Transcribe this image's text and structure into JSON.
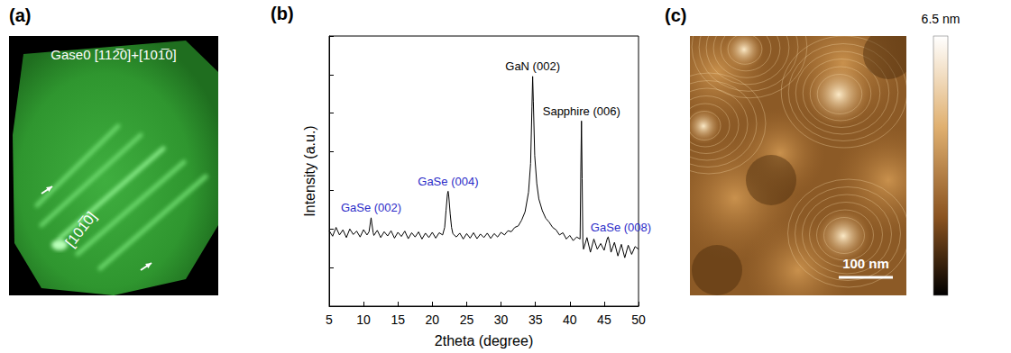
{
  "panel_a": {
    "label": "(a)",
    "title": "Gase0 [112̅0]+[101̅0]",
    "direction": "[101̅0]"
  },
  "chart_data": {
    "type": "line",
    "label": "(b)",
    "x_label": "2theta (degree)",
    "y_label": "Intensity (a.u.)",
    "x": [
      5,
      5.5,
      6,
      6.5,
      7,
      7.5,
      8,
      8.5,
      9,
      9.5,
      10,
      10.5,
      10.8,
      11,
      11.1,
      11.2,
      11.4,
      11.5,
      12,
      12.5,
      13,
      13.5,
      14,
      14.5,
      15,
      15.5,
      16,
      16.5,
      17,
      17.5,
      18,
      18.5,
      19,
      19.5,
      20,
      20.5,
      21,
      21.5,
      21.8,
      22,
      22.2,
      22.3,
      22.4,
      22.6,
      22.8,
      23,
      23.5,
      24,
      24.5,
      25,
      25.5,
      26,
      26.5,
      27,
      27.5,
      28,
      28.5,
      29,
      29.5,
      30,
      30.5,
      31,
      31.5,
      32,
      32.5,
      33,
      33.5,
      34,
      34.3,
      34.5,
      34.6,
      34.7,
      34.9,
      35.2,
      35.5,
      36,
      36.5,
      37,
      37.5,
      38,
      38.5,
      39,
      39.5,
      40,
      40.5,
      41,
      41.5,
      41.6,
      41.7,
      41.8,
      41.9,
      42,
      42.5,
      43,
      43.5,
      44,
      44.5,
      45,
      45.3,
      45.5,
      45.6,
      45.8,
      46,
      46.5,
      47,
      47.5,
      48,
      48.5,
      49,
      49.5,
      50
    ],
    "values": [
      90,
      65,
      110,
      70,
      95,
      60,
      100,
      72,
      88,
      62,
      96,
      70,
      85,
      150,
      195,
      140,
      80,
      68,
      92,
      60,
      85,
      66,
      90,
      58,
      82,
      64,
      88,
      56,
      80,
      62,
      84,
      55,
      78,
      60,
      82,
      58,
      80,
      70,
      110,
      300,
      800,
      950,
      700,
      250,
      110,
      75,
      62,
      78,
      55,
      76,
      58,
      80,
      56,
      74,
      60,
      78,
      57,
      76,
      62,
      82,
      70,
      90,
      85,
      110,
      120,
      170,
      280,
      900,
      5000,
      150000,
      900000,
      200000,
      8000,
      1500,
      600,
      300,
      190,
      150,
      110,
      95,
      70,
      80,
      55,
      68,
      50,
      62,
      55,
      3000,
      63000,
      2000,
      48,
      30,
      60,
      25,
      55,
      30,
      42,
      28,
      45,
      60,
      62,
      42,
      25,
      45,
      20,
      40,
      18,
      38,
      22,
      35,
      30
    ],
    "color": "#000000",
    "xlim": [
      5,
      50
    ],
    "xticks": [
      5,
      10,
      15,
      20,
      25,
      30,
      35,
      40,
      45,
      50
    ],
    "ylim": [
      1,
      10000000
    ],
    "log": "y",
    "tick_labels": "x",
    "grid": false,
    "annotations": [
      {
        "text": "GaSe (002)",
        "x": 11.1,
        "color": "#2b2bc8"
      },
      {
        "text": "GaSe (004)",
        "x": 22.3,
        "color": "#2b2bc8"
      },
      {
        "text": "GaN (002)",
        "x": 34.6,
        "color": "#000000"
      },
      {
        "text": "Sapphire (006)",
        "x": 41.7,
        "color": "#000000"
      },
      {
        "text": "GaSe (008)",
        "x": 45.6,
        "color": "#2b2bc8"
      }
    ]
  },
  "panel_c": {
    "label": "(c)",
    "colorbar_label": "6.5 nm",
    "scale_bar": "100 nm"
  }
}
